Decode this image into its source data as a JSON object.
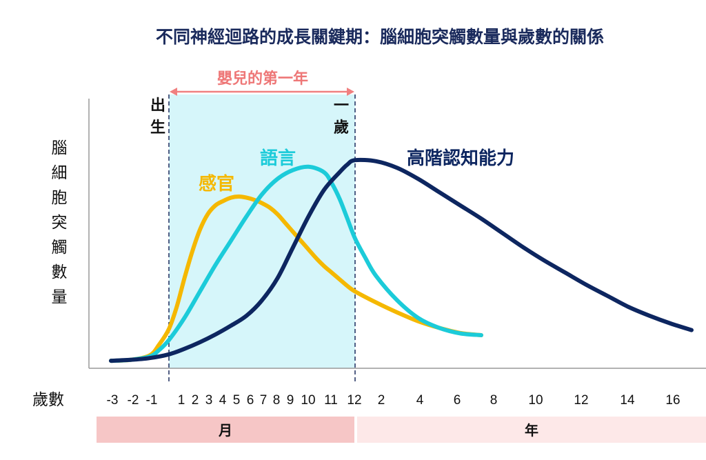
{
  "chart_data": {
    "type": "line",
    "title": "不同神經迴路的成長關鍵期：腦細胞突觸數量與歲數的關係",
    "ylabel": "腦細胞突觸數量",
    "xlabel": "歲數",
    "x_ticks": [
      "-3",
      "-2",
      "-1",
      "1",
      "2",
      "3",
      "4",
      "5",
      "6",
      "7",
      "8",
      "9",
      "10",
      "11",
      "12",
      "2",
      "4",
      "6",
      "8",
      "10",
      "12",
      "14",
      "16"
    ],
    "x_scale_note": "",
    "bands": [
      {
        "label": "月",
        "color": "#f6c6c6"
      },
      {
        "label": "年",
        "color": "#fde8e8"
      }
    ],
    "markers": [
      {
        "label": "出生",
        "at": "0"
      },
      {
        "label": "一歲",
        "at": "12"
      }
    ],
    "highlight_span": {
      "label": "嬰兒的第一年",
      "from": "出生",
      "to": "一歲",
      "fill": "#d6f6fa",
      "arrow_color": "#f08080"
    },
    "ylim": [
      0,
      100
    ],
    "series": [
      {
        "name": "感官",
        "color": "#f5b800",
        "points": [
          [
            -3,
            0.6
          ],
          [
            -2,
            1.0
          ],
          [
            -1,
            3
          ],
          [
            -0.5,
            8
          ],
          [
            0,
            15
          ],
          [
            0.5,
            25
          ],
          [
            1,
            38
          ],
          [
            1.5,
            50
          ],
          [
            2,
            60
          ],
          [
            2.5,
            67
          ],
          [
            3,
            71
          ],
          [
            3.5,
            73
          ],
          [
            4,
            74.5
          ],
          [
            4.5,
            75
          ],
          [
            5,
            74.5
          ],
          [
            5.5,
            73.5
          ],
          [
            6,
            72
          ],
          [
            6.5,
            70
          ],
          [
            7,
            67
          ],
          [
            7.5,
            63
          ],
          [
            8,
            59
          ],
          [
            8.5,
            55
          ],
          [
            9,
            51
          ],
          [
            9.5,
            47
          ],
          [
            10,
            43.5
          ],
          [
            10.5,
            40.5
          ],
          [
            11,
            37.5
          ],
          [
            11.5,
            34.5
          ],
          [
            12,
            32
          ],
          [
            13,
            27
          ],
          [
            14,
            22.5
          ],
          [
            15,
            18.5
          ],
          [
            16,
            15.5
          ],
          [
            17,
            13.2
          ],
          [
            18,
            12.2
          ]
        ]
      },
      {
        "name": "語言",
        "color": "#1ccbd9",
        "points": [
          [
            -3,
            0.6
          ],
          [
            -2,
            1.0
          ],
          [
            -1,
            2.5
          ],
          [
            -0.5,
            5.5
          ],
          [
            0,
            10
          ],
          [
            1,
            20
          ],
          [
            2,
            32
          ],
          [
            3,
            44
          ],
          [
            4,
            55
          ],
          [
            5,
            66
          ],
          [
            6,
            76
          ],
          [
            7,
            83
          ],
          [
            8,
            87
          ],
          [
            9,
            88.5
          ],
          [
            10,
            86
          ],
          [
            10.5,
            81
          ],
          [
            11,
            74
          ],
          [
            11.5,
            65
          ],
          [
            12,
            56
          ],
          [
            12.5,
            47
          ],
          [
            13,
            39
          ],
          [
            14,
            28
          ],
          [
            15,
            20
          ],
          [
            16,
            15.5
          ],
          [
            17,
            13
          ],
          [
            18,
            12.2
          ]
        ]
      },
      {
        "name": "高階認知能力",
        "color": "#0d2660",
        "points": [
          [
            -3,
            0.6
          ],
          [
            -2,
            1.0
          ],
          [
            -1,
            1.8
          ],
          [
            0,
            3.5
          ],
          [
            1,
            6
          ],
          [
            2,
            9
          ],
          [
            3,
            12.5
          ],
          [
            4,
            16.5
          ],
          [
            5,
            21
          ],
          [
            6,
            28
          ],
          [
            7,
            38
          ],
          [
            8,
            52
          ],
          [
            9,
            66
          ],
          [
            10,
            78
          ],
          [
            11,
            86
          ],
          [
            11.5,
            89.5
          ],
          [
            12,
            91.5
          ],
          [
            13,
            91
          ],
          [
            14,
            88
          ],
          [
            15,
            83
          ],
          [
            16,
            77
          ],
          [
            17,
            71
          ],
          [
            18,
            65
          ],
          [
            19,
            58.5
          ],
          [
            20,
            52
          ],
          [
            21,
            46
          ],
          [
            22,
            40.5
          ],
          [
            23,
            35
          ],
          [
            24,
            30
          ],
          [
            25,
            25
          ],
          [
            26,
            21
          ],
          [
            27,
            17.5
          ],
          [
            28,
            14.5
          ]
        ]
      }
    ]
  }
}
